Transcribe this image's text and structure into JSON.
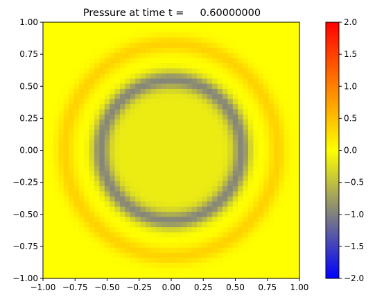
{
  "chart_data": [
    {
      "type": "heatmap",
      "title": "Pressure at time t =     0.60000000",
      "xlabel": "",
      "ylabel": "",
      "xlim": [
        -1.0,
        1.0
      ],
      "ylim": [
        -1.0,
        1.0
      ],
      "grid": false,
      "x_ticks": [
        -1.0,
        -0.75,
        -0.5,
        -0.25,
        0.0,
        0.25,
        0.5,
        0.75,
        1.0
      ],
      "x_tick_labels": [
        "−1.00",
        "−0.75",
        "−0.50",
        "−0.25",
        "0.00",
        "0.25",
        "0.50",
        "0.75",
        "1.00"
      ],
      "y_ticks": [
        -1.0,
        -0.75,
        -0.5,
        -0.25,
        0.0,
        0.25,
        0.5,
        0.75,
        1.0
      ],
      "y_tick_labels": [
        "−1.00",
        "−0.75",
        "−0.50",
        "−0.25",
        "0.00",
        "0.25",
        "0.50",
        "0.75",
        "1.00"
      ],
      "field": {
        "grid_resolution": 50,
        "base_value": 0.0,
        "center_value": -0.15,
        "inner_ring": {
          "radius": 0.55,
          "width": 0.07,
          "amplitude": -0.95
        },
        "outer_ring": {
          "radius": 0.83,
          "width": 0.07,
          "amplitude": 0.35
        }
      },
      "colorbar": {
        "vmin": -2.0,
        "vmax": 2.0,
        "ticks": [
          2.0,
          1.5,
          1.0,
          0.5,
          0.0,
          -0.5,
          -1.0,
          -1.5,
          -2.0
        ],
        "tick_labels": [
          "2.0",
          "1.5",
          "1.0",
          "0.5",
          "0.0",
          "−0.5",
          "−1.0",
          "−1.5",
          "−2.0"
        ],
        "colormap": [
          {
            "value": -2.0,
            "color": "#0000ff"
          },
          {
            "value": -1.0,
            "color": "#808080"
          },
          {
            "value": 0.0,
            "color": "#ffff00"
          },
          {
            "value": 1.0,
            "color": "#ff8000"
          },
          {
            "value": 2.0,
            "color": "#ff0000"
          }
        ]
      }
    }
  ]
}
